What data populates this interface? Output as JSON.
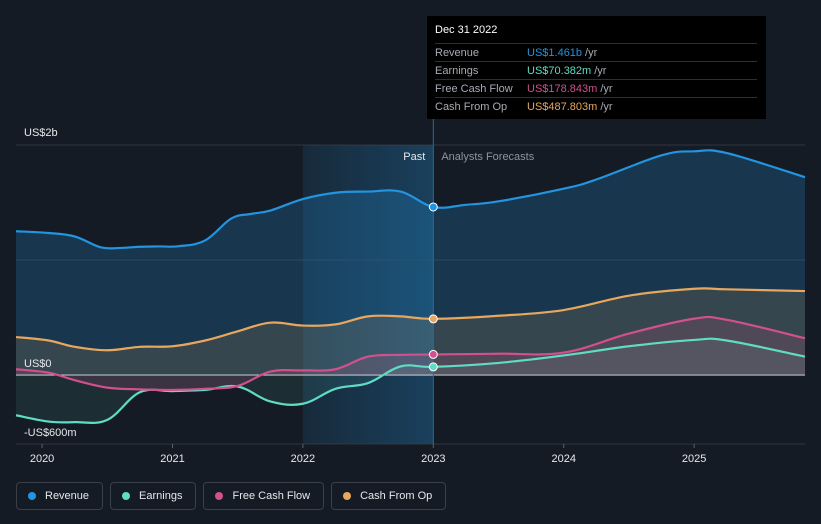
{
  "chart_data": {
    "type": "area",
    "title": "",
    "y_unit_labels": {
      "top": "US$2b",
      "zero": "US$0",
      "bottom": "-US$600m"
    },
    "ylim": [
      -600,
      2000
    ],
    "xlim": [
      2019.8,
      2025.85
    ],
    "x_ticks": [
      "2020",
      "2021",
      "2022",
      "2023",
      "2024",
      "2025"
    ],
    "divider_x": 2023.0,
    "past_label": "Past",
    "forecast_label": "Analysts Forecasts",
    "series": [
      {
        "name": "Revenue",
        "color": "#2394df",
        "x": [
          2019.8,
          2020.05,
          2020.25,
          2020.45,
          2020.6,
          2020.75,
          2020.9,
          2021.05,
          2021.25,
          2021.45,
          2021.6,
          2021.75,
          2022.0,
          2022.25,
          2022.5,
          2022.75,
          2023.0,
          2023.25,
          2023.5,
          2024.0,
          2024.25,
          2024.75,
          2025.0,
          2025.25,
          2025.85
        ],
        "values": [
          1250,
          1235,
          1205,
          1110,
          1105,
          1115,
          1118,
          1120,
          1170,
          1360,
          1400,
          1430,
          1530,
          1585,
          1595,
          1595,
          1461,
          1480,
          1510,
          1620,
          1700,
          1910,
          1945,
          1930,
          1720
        ]
      },
      {
        "name": "Earnings",
        "color": "#5fdcc3",
        "x": [
          2019.8,
          2020.05,
          2020.25,
          2020.5,
          2020.75,
          2021.0,
          2021.25,
          2021.5,
          2021.75,
          2022.0,
          2022.25,
          2022.5,
          2022.75,
          2023.0,
          2023.5,
          2024.0,
          2024.5,
          2025.0,
          2025.25,
          2025.85
        ],
        "values": [
          -350,
          -405,
          -410,
          -390,
          -150,
          -140,
          -130,
          -100,
          -230,
          -250,
          -120,
          -70,
          75,
          70.382,
          105,
          170,
          250,
          305,
          300,
          160
        ]
      },
      {
        "name": "Free Cash Flow",
        "color": "#d2508e",
        "x": [
          2019.8,
          2020.05,
          2020.25,
          2020.5,
          2020.75,
          2021.0,
          2021.25,
          2021.5,
          2021.75,
          2022.0,
          2022.25,
          2022.5,
          2022.75,
          2023.0,
          2023.5,
          2024.0,
          2024.5,
          2025.0,
          2025.25,
          2025.85
        ],
        "values": [
          50,
          20,
          -45,
          -110,
          -125,
          -130,
          -120,
          -95,
          30,
          40,
          50,
          160,
          175,
          178.843,
          185,
          195,
          360,
          490,
          480,
          320
        ]
      },
      {
        "name": "Cash From Op",
        "color": "#e8a75e",
        "x": [
          2019.8,
          2020.05,
          2020.25,
          2020.5,
          2020.75,
          2021.0,
          2021.25,
          2021.5,
          2021.75,
          2022.0,
          2022.25,
          2022.5,
          2022.75,
          2023.0,
          2023.5,
          2024.0,
          2024.5,
          2025.0,
          2025.25,
          2025.85
        ],
        "values": [
          330,
          300,
          245,
          215,
          245,
          250,
          300,
          380,
          455,
          430,
          440,
          510,
          510,
          487.803,
          515,
          565,
          690,
          750,
          745,
          730
        ]
      }
    ]
  },
  "tooltip": {
    "date": "Dec 31 2022",
    "rows": [
      {
        "name": "Revenue",
        "value": "US$1.461b",
        "unit": "/yr",
        "color": "#2394df"
      },
      {
        "name": "Earnings",
        "value": "US$70.382m",
        "unit": "/yr",
        "color": "#5fdcc3"
      },
      {
        "name": "Free Cash Flow",
        "value": "US$178.843m",
        "unit": "/yr",
        "color": "#d2508e"
      },
      {
        "name": "Cash From Op",
        "value": "US$487.803m",
        "unit": "/yr",
        "color": "#e8a75e"
      }
    ]
  },
  "legend": [
    {
      "label": "Revenue",
      "color": "#2394df"
    },
    {
      "label": "Earnings",
      "color": "#5fdcc3"
    },
    {
      "label": "Free Cash Flow",
      "color": "#d2508e"
    },
    {
      "label": "Cash From Op",
      "color": "#e8a75e"
    }
  ]
}
